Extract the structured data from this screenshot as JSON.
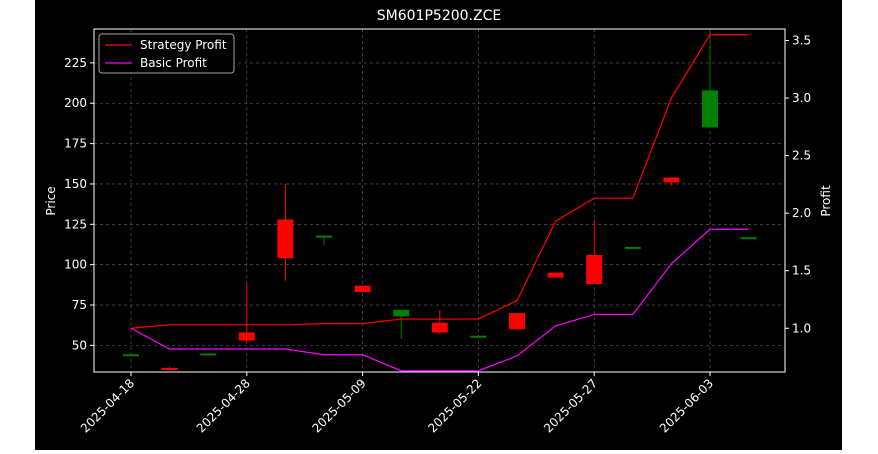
{
  "chart_data": {
    "type": "candlestick",
    "title": "SM601P5200.ZCE",
    "ylabel_left": "Price",
    "ylabel_right": "Profit",
    "grid": true,
    "legend_position": "top-left",
    "ylim_left": [
      33.5,
      246
    ],
    "ylim_right": [
      0.62,
      3.6
    ],
    "y_ticks_left": [
      50,
      75,
      100,
      125,
      150,
      175,
      200,
      225
    ],
    "y_ticks_right": [
      1.0,
      1.5,
      2.0,
      2.5,
      3.0,
      3.5
    ],
    "x_tick_labels": [
      "2025-04-18",
      "2025-04-28",
      "2025-05-09",
      "2025-05-22",
      "2025-05-27",
      "2025-06-03"
    ],
    "x_tick_positions": [
      0,
      3,
      6,
      9,
      12,
      15
    ],
    "colors": {
      "up": "#008000",
      "down": "#ff0000",
      "strategy": "#ff0000",
      "basic": "#ff00ff",
      "background": "#000000"
    },
    "candles": [
      {
        "open": 44.5,
        "high": 44.5,
        "low": 44.5,
        "close": 44.5
      },
      {
        "open": 36,
        "high": 37,
        "low": 35,
        "close": 35
      },
      {
        "open": 45,
        "high": 45,
        "low": 45,
        "close": 45
      },
      {
        "open": 58,
        "high": 88,
        "low": 52,
        "close": 53
      },
      {
        "open": 128,
        "high": 150,
        "low": 90,
        "close": 104
      },
      {
        "open": 118,
        "high": 118,
        "low": 112,
        "close": 118
      },
      {
        "open": 87,
        "high": 87,
        "low": 83,
        "close": 83
      },
      {
        "open": 68,
        "high": 71,
        "low": 54,
        "close": 72
      },
      {
        "open": 64,
        "high": 72,
        "low": 57,
        "close": 58
      },
      {
        "open": 56,
        "high": 56,
        "low": 56,
        "close": 56
      },
      {
        "open": 70,
        "high": 70,
        "low": 60,
        "close": 60
      },
      {
        "open": 95,
        "high": 95,
        "low": 92,
        "close": 92
      },
      {
        "open": 106,
        "high": 128,
        "low": 88,
        "close": 88
      },
      {
        "open": 111,
        "high": 111,
        "low": 111,
        "close": 111
      },
      {
        "open": 154,
        "high": 154,
        "low": 149,
        "close": 151
      },
      {
        "open": 185,
        "high": 245,
        "low": 185,
        "close": 208
      },
      {
        "open": 117,
        "high": 117,
        "low": 117,
        "close": 117
      }
    ],
    "series": [
      {
        "name": "Strategy Profit",
        "color": "#ff0000",
        "values": [
          1.0,
          1.03,
          1.03,
          1.03,
          1.03,
          1.04,
          1.04,
          1.08,
          1.08,
          1.08,
          1.24,
          1.93,
          2.13,
          2.13,
          3.0,
          3.55,
          3.55
        ]
      },
      {
        "name": "Basic Profit",
        "color": "#ff00ff",
        "values": [
          1.0,
          0.82,
          0.82,
          0.82,
          0.82,
          0.77,
          0.77,
          0.63,
          0.63,
          0.63,
          0.76,
          1.02,
          1.12,
          1.12,
          1.56,
          1.86,
          1.86
        ]
      }
    ]
  }
}
